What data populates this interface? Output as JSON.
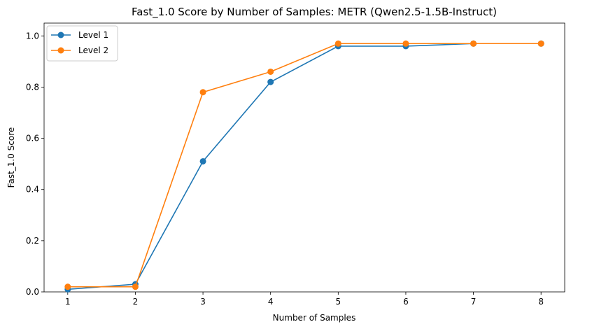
{
  "chart_data": {
    "type": "line",
    "title": "Fast_1.0 Score by Number of Samples: METR (Qwen2.5-1.5B-Instruct)",
    "xlabel": "Number of Samples",
    "ylabel": "Fast_1.0 Score",
    "x": [
      1,
      2,
      3,
      4,
      5,
      6,
      7,
      8
    ],
    "xlim": [
      0.65,
      8.35
    ],
    "ylim": [
      0,
      1.05
    ],
    "xticks": [
      "1",
      "2",
      "3",
      "4",
      "5",
      "6",
      "7",
      "8"
    ],
    "yticks": [
      "0.0",
      "0.2",
      "0.4",
      "0.6",
      "0.8",
      "1.0"
    ],
    "ytick_values": [
      0,
      0.2,
      0.4,
      0.6,
      0.8,
      1.0
    ],
    "grid": false,
    "legend_position": "top-left",
    "series": [
      {
        "name": "Level 1",
        "color": "#1f77b4",
        "values": [
          0.01,
          0.03,
          0.51,
          0.82,
          0.96,
          0.96,
          0.97,
          0.97
        ]
      },
      {
        "name": "Level 2",
        "color": "#ff7f0e",
        "values": [
          0.02,
          0.02,
          0.78,
          0.86,
          0.97,
          0.97,
          0.97,
          0.97
        ]
      }
    ]
  }
}
